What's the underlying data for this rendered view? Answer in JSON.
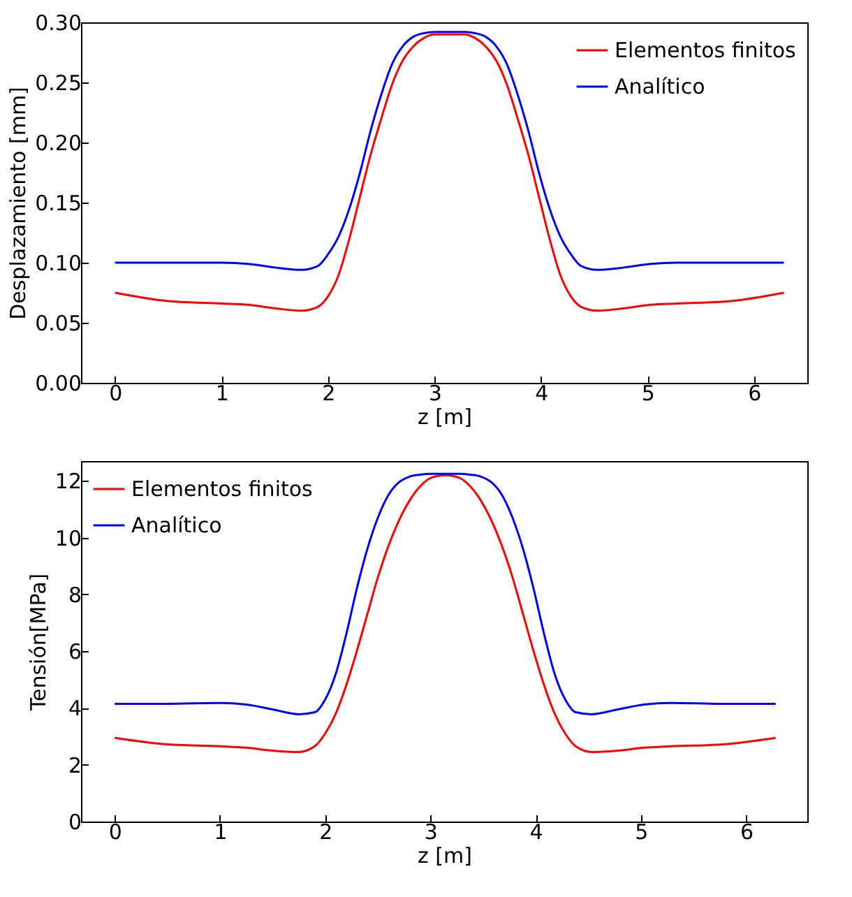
{
  "chart_data": [
    {
      "type": "line",
      "xlabel": "z [m]",
      "ylabel": "Desplazamiento [mm]",
      "xlim": [
        -0.32,
        6.5
      ],
      "ylim": [
        0,
        0.3
      ],
      "xticks": [
        0,
        1,
        2,
        3,
        4,
        5,
        6
      ],
      "yticks": [
        {
          "value": 0,
          "label": "0.00"
        },
        0.05,
        {
          "value": 0.1,
          "label": "0.10"
        },
        0.15,
        {
          "value": 0.2,
          "label": "0.20"
        },
        0.25,
        {
          "value": 0.3,
          "label": "0.30"
        }
      ],
      "legend": "top right",
      "grid": false,
      "x": [
        0,
        0.5,
        1,
        1.25,
        1.5,
        1.75,
        1.9,
        2.0,
        2.1,
        2.2,
        2.3,
        2.4,
        2.5,
        2.6,
        2.7,
        2.8,
        2.9,
        3.0,
        3.14,
        3.28,
        3.38,
        3.48,
        3.58,
        3.68,
        3.78,
        3.88,
        3.98,
        4.08,
        4.18,
        4.28,
        4.38,
        4.53,
        4.78,
        5.03,
        5.28,
        5.78,
        6.28
      ],
      "series": [
        {
          "name": "Elementos finitos",
          "color": "#ff0000",
          "values": [
            0.075,
            0.068,
            0.066,
            0.065,
            0.062,
            0.06,
            0.063,
            0.072,
            0.09,
            0.12,
            0.155,
            0.19,
            0.22,
            0.248,
            0.268,
            0.28,
            0.287,
            0.29,
            0.29,
            0.29,
            0.287,
            0.28,
            0.268,
            0.248,
            0.22,
            0.19,
            0.155,
            0.12,
            0.09,
            0.072,
            0.063,
            0.06,
            0.062,
            0.065,
            0.066,
            0.068,
            0.075
          ]
        },
        {
          "name": "Analítico",
          "color": "#0000ff",
          "values": [
            0.1,
            0.1,
            0.1,
            0.099,
            0.096,
            0.094,
            0.097,
            0.107,
            0.122,
            0.145,
            0.175,
            0.21,
            0.24,
            0.265,
            0.28,
            0.288,
            0.291,
            0.292,
            0.292,
            0.292,
            0.291,
            0.288,
            0.28,
            0.265,
            0.24,
            0.21,
            0.175,
            0.145,
            0.122,
            0.107,
            0.097,
            0.094,
            0.096,
            0.099,
            0.1,
            0.1,
            0.1
          ]
        }
      ]
    },
    {
      "type": "line",
      "xlabel": "z [m]",
      "ylabel": "Tensión[MPa]",
      "xlim": [
        -0.32,
        6.58
      ],
      "ylim": [
        0,
        12.7
      ],
      "xticks": [
        0,
        1,
        2,
        3,
        4,
        5,
        6
      ],
      "yticks": [
        0,
        2,
        4,
        6,
        8,
        10,
        12
      ],
      "legend": "top left",
      "grid": false,
      "x": [
        0,
        0.5,
        1,
        1.25,
        1.5,
        1.75,
        1.9,
        2.0,
        2.1,
        2.2,
        2.3,
        2.4,
        2.5,
        2.6,
        2.7,
        2.8,
        2.9,
        3.0,
        3.14,
        3.28,
        3.38,
        3.48,
        3.58,
        3.68,
        3.78,
        3.88,
        3.98,
        4.08,
        4.18,
        4.28,
        4.38,
        4.53,
        4.78,
        5.03,
        5.28,
        5.78,
        6.28
      ],
      "series": [
        {
          "name": "Elementos finitos",
          "color": "#ff0000",
          "values": [
            2.95,
            2.72,
            2.65,
            2.6,
            2.5,
            2.45,
            2.65,
            3.1,
            3.8,
            4.8,
            6.0,
            7.3,
            8.6,
            9.7,
            10.6,
            11.3,
            11.8,
            12.1,
            12.2,
            12.1,
            11.8,
            11.3,
            10.6,
            9.7,
            8.6,
            7.3,
            6.0,
            4.8,
            3.8,
            3.1,
            2.65,
            2.45,
            2.5,
            2.6,
            2.65,
            2.72,
            2.95
          ]
        },
        {
          "name": "Analítico",
          "color": "#0000ff",
          "values": [
            4.15,
            4.15,
            4.18,
            4.12,
            3.95,
            3.78,
            3.85,
            4.3,
            5.2,
            6.6,
            8.2,
            9.6,
            10.7,
            11.5,
            11.95,
            12.15,
            12.22,
            12.25,
            12.25,
            12.25,
            12.22,
            12.15,
            11.95,
            11.5,
            10.7,
            9.6,
            8.2,
            6.6,
            5.2,
            4.3,
            3.85,
            3.78,
            3.95,
            4.12,
            4.18,
            4.15,
            4.15
          ]
        }
      ]
    }
  ]
}
